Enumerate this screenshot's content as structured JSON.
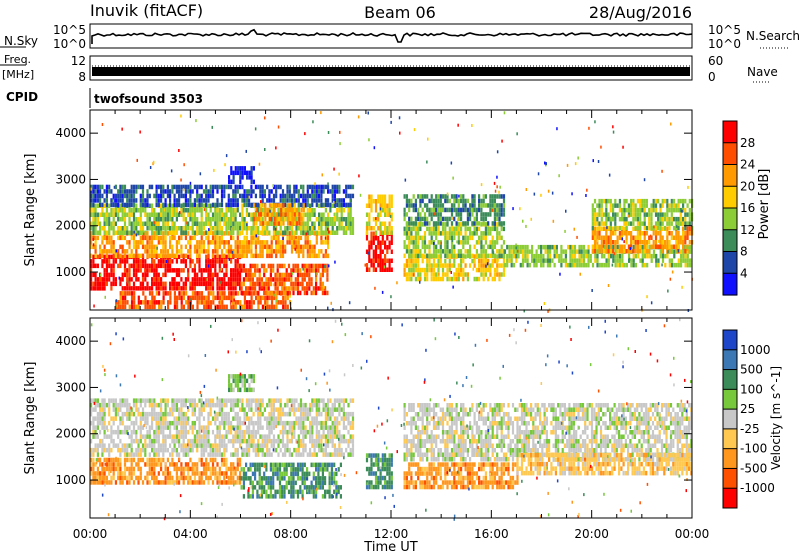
{
  "header": {
    "station": "Inuvik (fitACF)",
    "beam": "Beam 06",
    "date": "28/Aug/2016"
  },
  "top_panels": {
    "nsky_label": "N.Sky",
    "nsky_ticks": [
      "10^5",
      "10^0"
    ],
    "nsearch_label": "N.Search",
    "nsearch_ticks": [
      "10^5",
      "10^0"
    ],
    "freq_label_line1": "Freq.",
    "freq_label_line2": "[MHz]",
    "freq_ticks": [
      "12",
      "8"
    ],
    "nave_label": "Nave",
    "nave_ticks": [
      "60",
      "0"
    ],
    "cpid_label": "CPID",
    "cpid_text": "twofsound 3503"
  },
  "axes": {
    "xlabel": "Time UT",
    "x_ticks": [
      "00:00",
      "04:00",
      "08:00",
      "12:00",
      "16:00",
      "20:00",
      "00:00"
    ],
    "ylabel": "Slant Range [km]",
    "y_ticks": [
      "1000",
      "2000",
      "3000",
      "4000"
    ]
  },
  "chart_data": [
    {
      "type": "heatmap",
      "title": "",
      "xlabel": "",
      "ylabel": "Slant Range [km]",
      "x_hours_range": [
        0,
        24
      ],
      "ylim": [
        180,
        4500
      ],
      "colorbar_label": "Power [dB]",
      "colorbar_ticks": [
        "28",
        "24",
        "20",
        "16",
        "12",
        "8",
        "4"
      ],
      "colorbar_colors": [
        "#ff0000",
        "#ff4e00",
        "#ff9a00",
        "#ffcc00",
        "#8ccc34",
        "#3c8c5a",
        "#1e46a8",
        "#1010ff"
      ],
      "bands": [
        {
          "t0": 0.0,
          "t1": 6.0,
          "r0": 600,
          "r1": 1300,
          "level": 0
        },
        {
          "t0": 0.0,
          "t1": 9.5,
          "r0": 1300,
          "r1": 1800,
          "level": 2
        },
        {
          "t0": 0.0,
          "t1": 10.5,
          "r0": 1800,
          "r1": 2400,
          "level": 4
        },
        {
          "t0": 0.0,
          "t1": 10.5,
          "r0": 2400,
          "r1": 2800,
          "level": 6
        },
        {
          "t0": 6.0,
          "t1": 9.5,
          "r0": 500,
          "r1": 1100,
          "level": 1
        },
        {
          "t0": 6.5,
          "t1": 8.5,
          "r0": 2000,
          "r1": 2400,
          "level": 2
        },
        {
          "t0": 11.0,
          "t1": 12.0,
          "r0": 1000,
          "r1": 1800,
          "level": 0
        },
        {
          "t0": 11.0,
          "t1": 12.0,
          "r0": 1800,
          "r1": 2600,
          "level": 3
        },
        {
          "t0": 12.5,
          "t1": 16.5,
          "r0": 800,
          "r1": 1300,
          "level": 3
        },
        {
          "t0": 12.5,
          "t1": 16.5,
          "r0": 1300,
          "r1": 2000,
          "level": 4
        },
        {
          "t0": 12.5,
          "t1": 16.5,
          "r0": 2000,
          "r1": 2600,
          "level": 5
        },
        {
          "t0": 16.5,
          "t1": 24.0,
          "r0": 1100,
          "r1": 1500,
          "level": 4
        },
        {
          "t0": 20.0,
          "t1": 24.0,
          "r0": 1400,
          "r1": 1900,
          "level": 2
        },
        {
          "t0": 20.0,
          "t1": 24.0,
          "r0": 1900,
          "r1": 2500,
          "level": 4
        },
        {
          "t0": 1.0,
          "t1": 8.0,
          "r0": 200,
          "r1": 500,
          "level": 1
        },
        {
          "t0": 5.5,
          "t1": 6.5,
          "r0": 2900,
          "r1": 3200,
          "level": 7
        }
      ]
    },
    {
      "type": "heatmap",
      "title": "",
      "xlabel": "Time UT",
      "ylabel": "Slant Range [km]",
      "x_hours_range": [
        0,
        24
      ],
      "ylim": [
        180,
        4500
      ],
      "colorbar_label": "Velocity [m s^-1]",
      "colorbar_ticks": [
        "1000",
        "500",
        "100",
        "25",
        "-25",
        "-100",
        "-500",
        "-1000"
      ],
      "colorbar_colors": [
        "#1e46c8",
        "#3c78b4",
        "#3c8c5a",
        "#78c83c",
        "#c8c8c8",
        "#ffc850",
        "#ff961e",
        "#ff5000",
        "#ff0000"
      ],
      "bands": [
        {
          "t0": 0.0,
          "t1": 6.0,
          "r0": 900,
          "r1": 1400,
          "level": 6
        },
        {
          "t0": 0.0,
          "t1": 10.5,
          "r0": 1500,
          "r1": 2700,
          "level": 4
        },
        {
          "t0": 6.0,
          "t1": 10.0,
          "r0": 600,
          "r1": 1300,
          "level": 2
        },
        {
          "t0": 11.0,
          "t1": 12.0,
          "r0": 800,
          "r1": 1500,
          "level": 2
        },
        {
          "t0": 12.5,
          "t1": 17.0,
          "r0": 800,
          "r1": 1300,
          "level": 6
        },
        {
          "t0": 12.5,
          "t1": 24.0,
          "r0": 1400,
          "r1": 2600,
          "level": 4
        },
        {
          "t0": 17.0,
          "t1": 24.0,
          "r0": 1100,
          "r1": 1500,
          "level": 5
        },
        {
          "t0": 5.5,
          "t1": 6.5,
          "r0": 2900,
          "r1": 3200,
          "level": 3
        }
      ]
    }
  ]
}
